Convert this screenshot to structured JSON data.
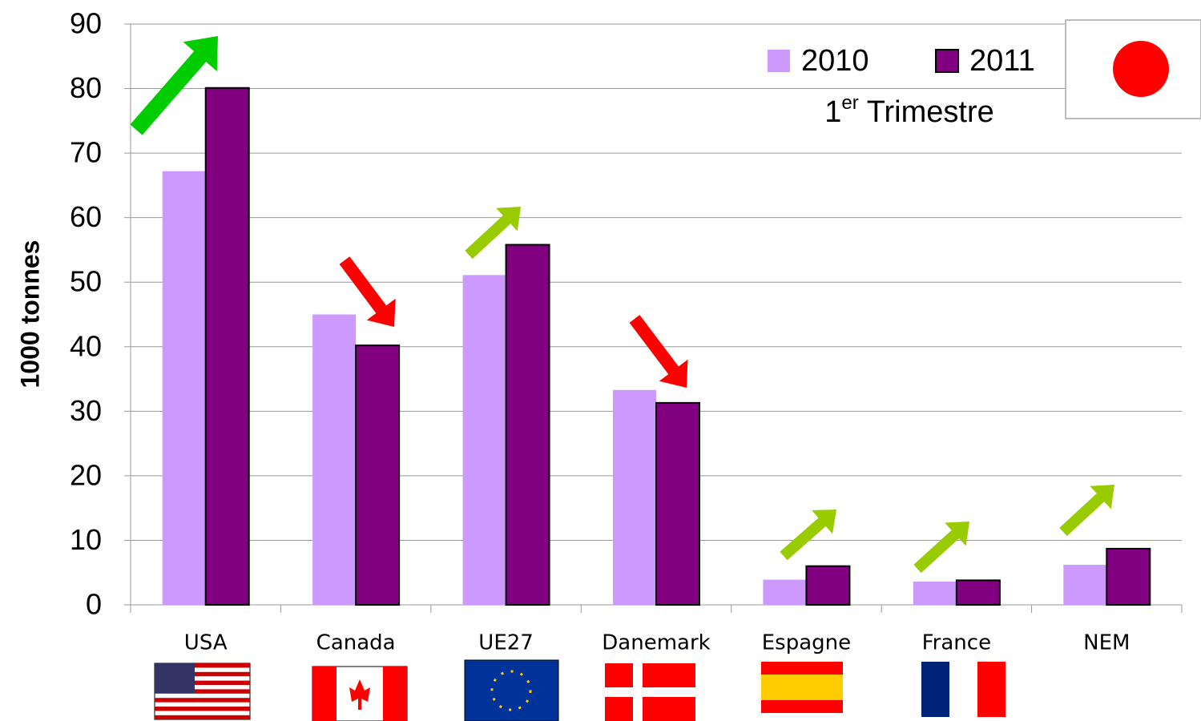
{
  "chart_data": {
    "type": "bar",
    "y_axis_label": "1000 tonnes",
    "legend_note": {
      "number": "1",
      "superscript": "er",
      "text": "Trimestre"
    },
    "categories": [
      "USA",
      "Canada",
      "UE27",
      "Danemark",
      "Espagne",
      "France",
      "NEM"
    ],
    "series": [
      {
        "name": "2010",
        "color": "#cc99ff",
        "values": [
          67.2,
          45.0,
          51.1,
          33.3,
          3.9,
          3.6,
          6.2
        ]
      },
      {
        "name": "2011",
        "color": "#800080",
        "values": [
          80.1,
          40.2,
          55.8,
          31.3,
          6.0,
          3.8,
          8.7
        ]
      }
    ],
    "ylim": [
      0,
      90
    ],
    "yticks": [
      0,
      10,
      20,
      30,
      40,
      50,
      60,
      70,
      80,
      90
    ],
    "grid": true
  }
}
